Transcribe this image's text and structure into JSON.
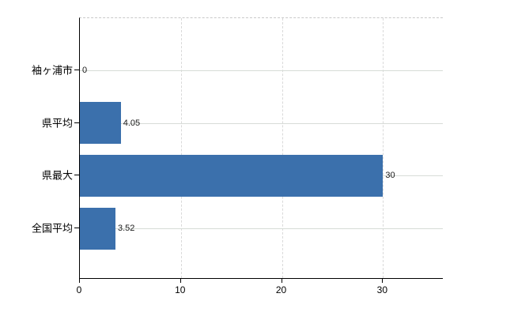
{
  "chart_data": {
    "type": "bar",
    "orientation": "horizontal",
    "title": "",
    "xlabel": "",
    "ylabel": "",
    "categories": [
      "袖ヶ浦市",
      "県平均",
      "県最大",
      "全国平均"
    ],
    "values": [
      0,
      4.05,
      30,
      3.52
    ],
    "value_labels": [
      "0",
      "4.05",
      "30",
      "3.52"
    ],
    "x_ticks": [
      0,
      10,
      20,
      30
    ],
    "x_tick_labels": [
      "0",
      "10",
      "20",
      "30"
    ],
    "xlim": [
      0,
      36
    ],
    "grid": true,
    "legend": false,
    "plot_top_border": "dashed",
    "colors": {
      "bar": "#3b70ac",
      "horizontal_gridline": "#d7dcd7",
      "vertical_gridline": "#d9d9d9",
      "plot_border": "#c9c9c9",
      "axis": "#000000",
      "text": "#000000",
      "background": "#ffffff"
    }
  }
}
